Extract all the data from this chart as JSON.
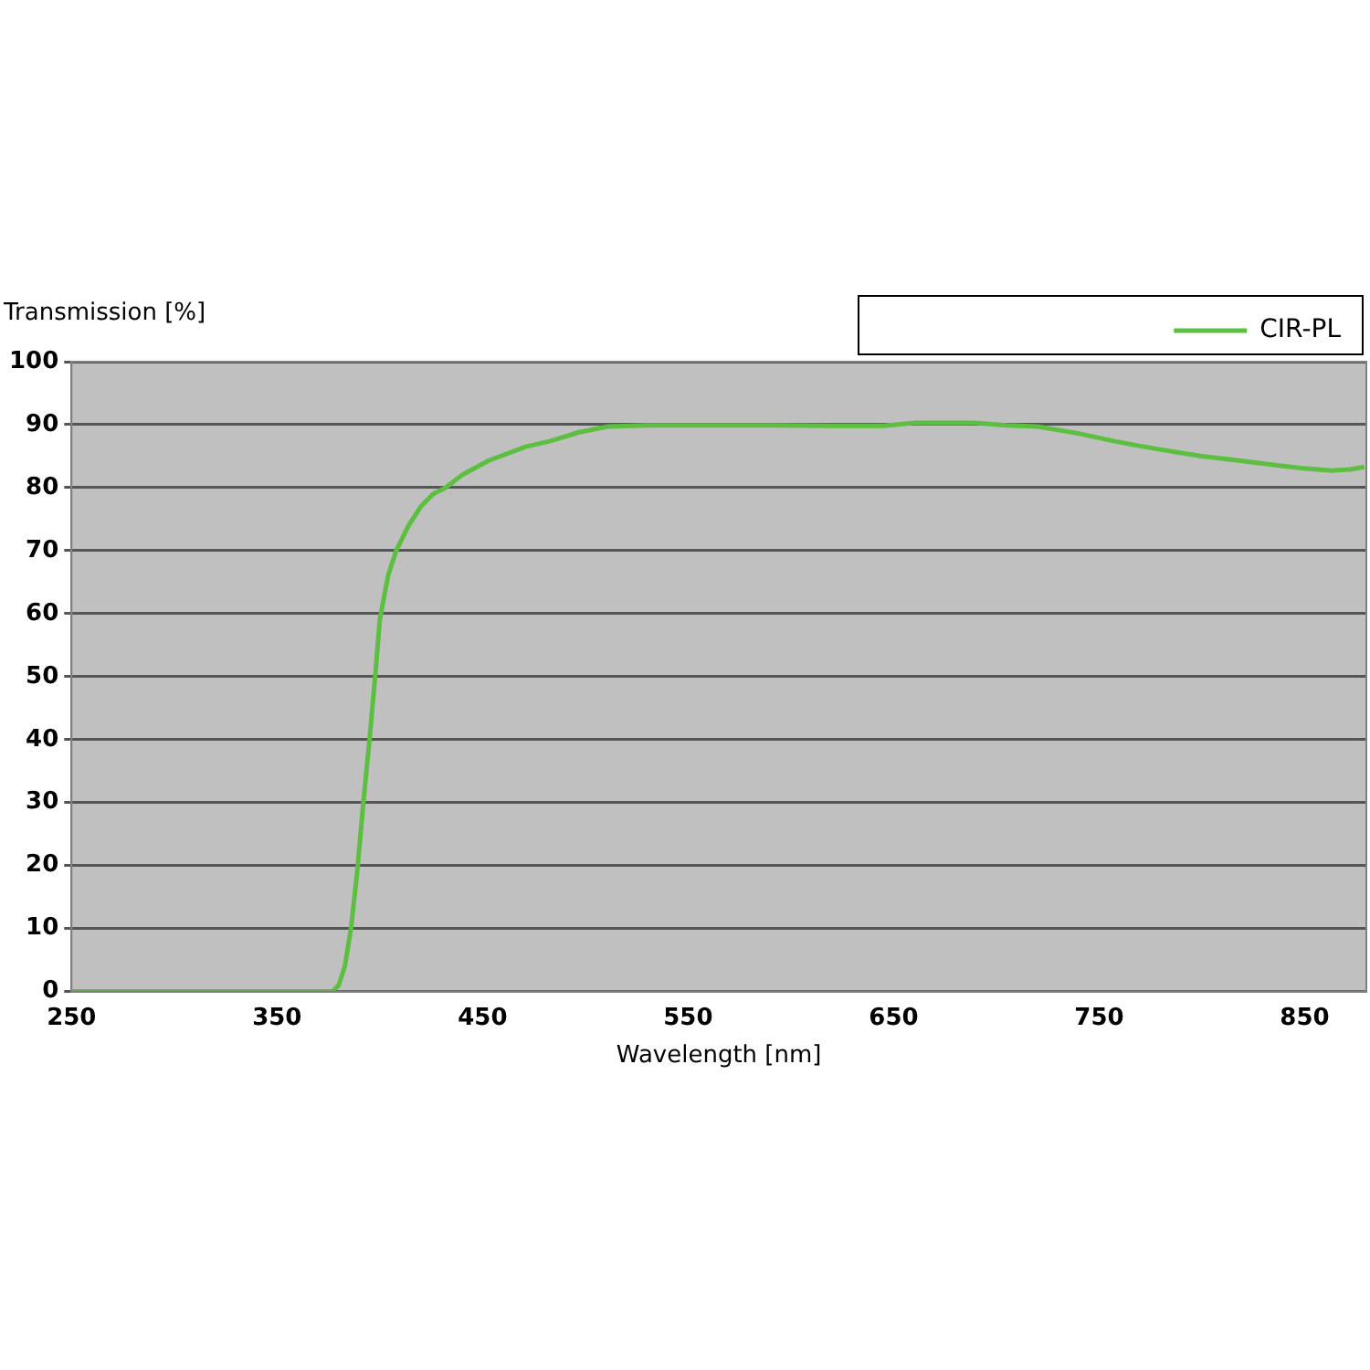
{
  "chart_data": {
    "type": "line",
    "xlabel": "Wavelength [nm]",
    "ylabel": "Transmission [%]",
    "xlim": [
      250,
      880
    ],
    "xticks": [
      250,
      350,
      450,
      550,
      650,
      750,
      850
    ],
    "ylim": [
      0,
      100
    ],
    "yticks": [
      0,
      10,
      20,
      30,
      40,
      50,
      60,
      70,
      80,
      90,
      100
    ],
    "grid": "y",
    "legend": "top right",
    "marker": "none",
    "line_style": "solid",
    "series": [
      {
        "name": "CIR-PL",
        "color": "#5cbf40",
        "x": [
          250,
          300,
          350,
          377,
          380,
          383,
          386,
          389,
          392,
          395,
          398,
          400,
          404,
          408,
          414,
          420,
          426,
          432,
          440,
          453,
          471,
          483,
          497,
          511,
          530,
          560,
          593,
          620,
          645,
          660,
          690,
          705,
          720,
          740,
          757,
          770,
          788,
          800,
          818,
          835,
          848,
          863,
          872,
          879
        ],
        "values": [
          0,
          0,
          0,
          0,
          1,
          4,
          10,
          19,
          30,
          40,
          51,
          59,
          66,
          70,
          74,
          77,
          79,
          80,
          82,
          84.3,
          86.5,
          87.4,
          88.8,
          89.7,
          89.9,
          89.9,
          89.9,
          89.8,
          89.8,
          90.3,
          90.3,
          89.9,
          89.7,
          88.6,
          87.4,
          86.6,
          85.6,
          85,
          84.3,
          83.6,
          83.1,
          82.7,
          82.9,
          83.3
        ]
      }
    ]
  }
}
